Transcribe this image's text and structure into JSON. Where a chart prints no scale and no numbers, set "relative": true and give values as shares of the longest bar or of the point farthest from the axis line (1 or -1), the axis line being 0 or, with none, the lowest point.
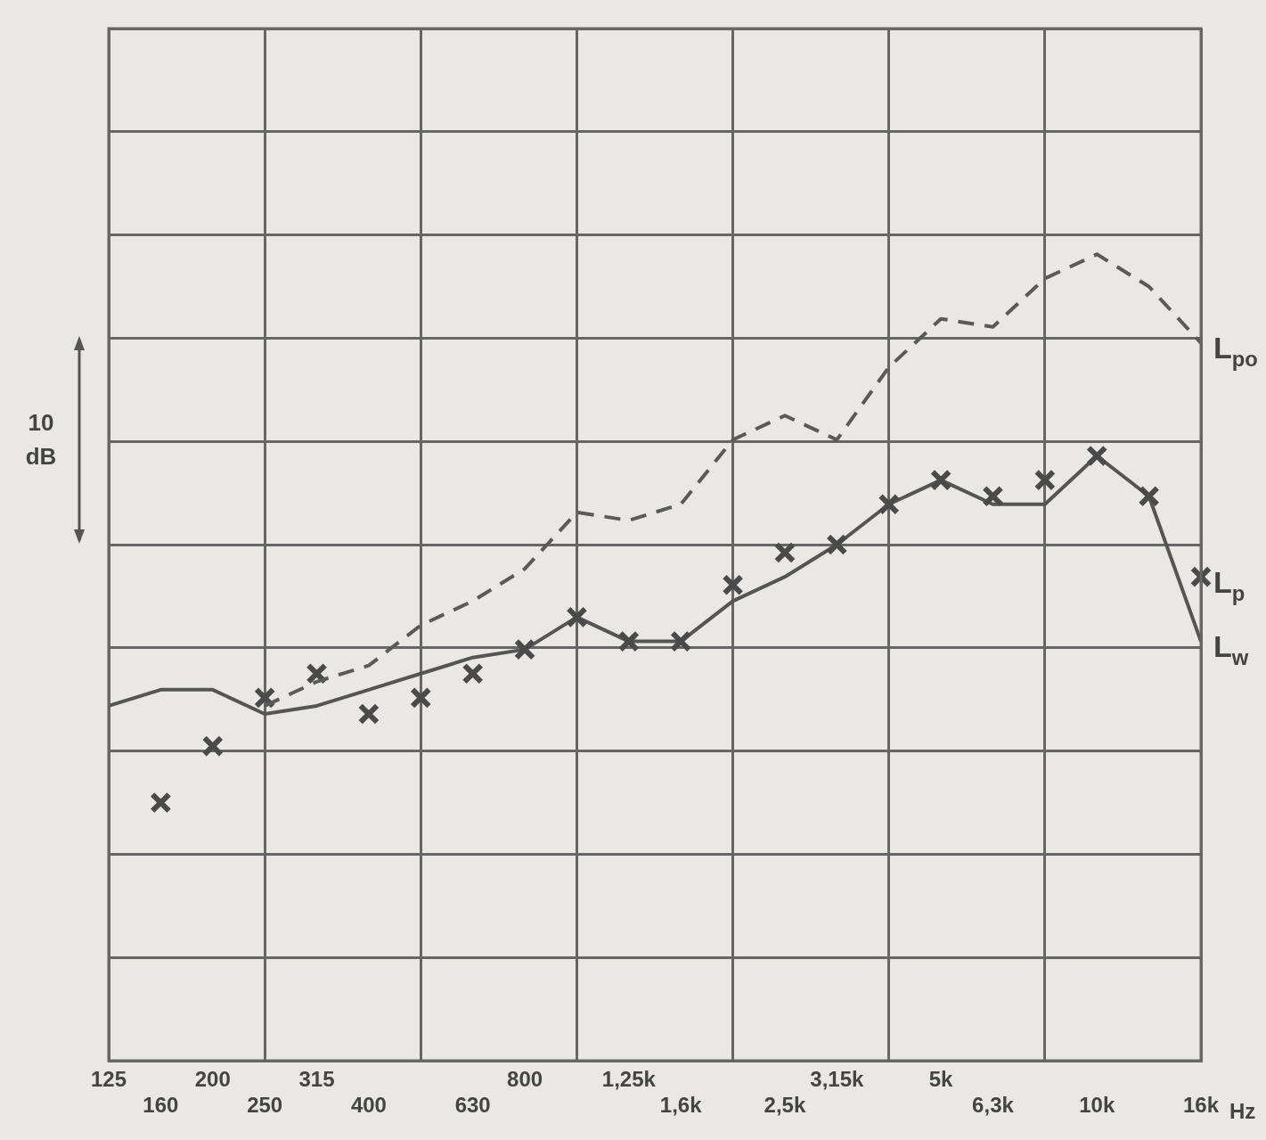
{
  "chart_data": {
    "type": "line",
    "relative": true,
    "grid": true,
    "legend": false,
    "xlabel": "Hz",
    "annotations": [
      "10 dB"
    ],
    "categories": [
      "125",
      "160",
      "200",
      "250",
      "315",
      "400",
      null,
      "630",
      "800",
      null,
      "1,25k",
      "1,6k",
      null,
      "2,5k",
      "3,15k",
      null,
      "5k",
      "6,3k",
      null,
      "10k",
      null,
      "16k"
    ],
    "series": [
      {
        "name": "L$_{po}$",
        "color": "#5a5a5a",
        "line_style": "dashed",
        "marker": "none",
        "values": [
          null,
          null,
          null,
          0.44,
          0.47,
          0.49,
          0.54,
          0.57,
          0.61,
          0.68,
          0.67,
          0.69,
          0.77,
          0.8,
          0.77,
          0.86,
          0.92,
          0.91,
          0.97,
          1.0,
          0.96,
          0.89
        ]
      },
      {
        "name": "L$_{p}$",
        "type": "scatter",
        "color": "#4a4a4a",
        "marker": "cross",
        "values": [
          null,
          0.32,
          0.39,
          0.45,
          0.48,
          0.43,
          0.45,
          0.48,
          0.51,
          0.55,
          0.52,
          0.52,
          0.59,
          0.63,
          0.64,
          0.69,
          0.72,
          0.7,
          0.72,
          0.75,
          0.7,
          0.6
        ]
      },
      {
        "name": "L$_{w}$",
        "color": "#555555",
        "line_style": "solid",
        "marker": "none",
        "values": [
          0.44,
          0.46,
          0.46,
          0.43,
          0.44,
          0.46,
          0.48,
          0.5,
          0.51,
          0.55,
          0.52,
          0.52,
          0.57,
          0.6,
          0.64,
          0.69,
          0.72,
          0.69,
          0.69,
          0.75,
          0.7,
          0.52
        ]
      }
    ]
  }
}
